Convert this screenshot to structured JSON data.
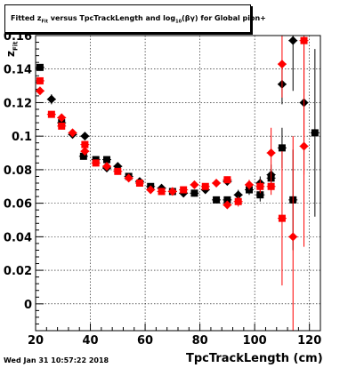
{
  "title_parts": {
    "pre": "Fitted  z",
    "sub1": "Fit",
    "mid": " versus TpcTrackLength and log",
    "sub2": "10",
    "post": "(βγ) for Global pion+"
  },
  "timestamp": "Wed Jan 31 10:57:22 2018",
  "chart_data": {
    "type": "scatter",
    "xlabel": "TpcTrackLength (cm)",
    "ylabel_main": "z",
    "ylabel_sub": "Fit",
    "xlim": [
      20,
      124
    ],
    "ylim": [
      -0.016,
      0.16
    ],
    "xticks": [
      20,
      40,
      60,
      80,
      100,
      120
    ],
    "yticks": [
      0,
      0.02,
      0.04,
      0.06,
      0.08,
      0.1,
      0.12,
      0.14,
      0.16
    ],
    "ytick_labels": [
      "0",
      "0.02",
      "0.04",
      "0.06",
      "0.08",
      "0.1",
      "0.12",
      "0.14",
      "0.16"
    ],
    "grid": true,
    "colors": {
      "series_black": "#000000",
      "series_red": "#ff0000"
    },
    "series": [
      {
        "marker": "square-and-diamond",
        "color": "#000000",
        "points": [
          {
            "x": 21.6,
            "y": 0.141,
            "err": 0.002
          },
          {
            "x": 25.8,
            "y": 0.122,
            "err": 0.003
          },
          {
            "x": 29.5,
            "y": 0.108,
            "err": 0.003
          },
          {
            "x": 33.5,
            "y": 0.101,
            "err": 0.002
          },
          {
            "x": 37.5,
            "y": 0.088,
            "err": 0.002
          },
          {
            "x": 38.0,
            "y": 0.1,
            "err": 0.002
          },
          {
            "x": 42.0,
            "y": 0.086,
            "err": 0.002
          },
          {
            "x": 46.0,
            "y": 0.081,
            "err": 0.002
          },
          {
            "x": 46.0,
            "y": 0.086,
            "err": 0.002
          },
          {
            "x": 50.0,
            "y": 0.082,
            "err": 0.002
          },
          {
            "x": 54.0,
            "y": 0.076,
            "err": 0.002
          },
          {
            "x": 58.0,
            "y": 0.073,
            "err": 0.002
          },
          {
            "x": 62.0,
            "y": 0.07,
            "err": 0.002
          },
          {
            "x": 66.0,
            "y": 0.069,
            "err": 0.002
          },
          {
            "x": 70.0,
            "y": 0.067,
            "err": 0.002
          },
          {
            "x": 74.0,
            "y": 0.066,
            "err": 0.002
          },
          {
            "x": 78.0,
            "y": 0.066,
            "err": 0.002
          },
          {
            "x": 82.0,
            "y": 0.068,
            "err": 0.002
          },
          {
            "x": 86.0,
            "y": 0.062,
            "err": 0.002
          },
          {
            "x": 90.0,
            "y": 0.073,
            "err": 0.002
          },
          {
            "x": 90.0,
            "y": 0.062,
            "err": 0.002
          },
          {
            "x": 94.0,
            "y": 0.065,
            "err": 0.003
          },
          {
            "x": 98.0,
            "y": 0.068,
            "err": 0.003
          },
          {
            "x": 102.0,
            "y": 0.072,
            "err": 0.004
          },
          {
            "x": 102.0,
            "y": 0.065,
            "err": 0.004
          },
          {
            "x": 106.0,
            "y": 0.077,
            "err": 0.006
          },
          {
            "x": 106.0,
            "y": 0.075,
            "err": 0.005
          },
          {
            "x": 110.0,
            "y": 0.131,
            "err": 0.012
          },
          {
            "x": 110.0,
            "y": 0.093,
            "err": 0.012
          },
          {
            "x": 114.0,
            "y": 0.157,
            "err": 0.03
          },
          {
            "x": 114.0,
            "y": 0.062,
            "err": 0.03
          },
          {
            "x": 118.0,
            "y": 0.12,
            "err": 0.04
          },
          {
            "x": 122.0,
            "y": 0.102,
            "err": 0.05
          }
        ]
      },
      {
        "marker": "square-and-diamond",
        "color": "#ff0000",
        "points": [
          {
            "x": 21.6,
            "y": 0.133,
            "err": 0.002
          },
          {
            "x": 21.6,
            "y": 0.127,
            "err": 0.002
          },
          {
            "x": 25.8,
            "y": 0.113,
            "err": 0.002
          },
          {
            "x": 29.5,
            "y": 0.111,
            "err": 0.002
          },
          {
            "x": 29.5,
            "y": 0.106,
            "err": 0.002
          },
          {
            "x": 33.5,
            "y": 0.102,
            "err": 0.002
          },
          {
            "x": 38.0,
            "y": 0.095,
            "err": 0.002
          },
          {
            "x": 38.0,
            "y": 0.091,
            "err": 0.002
          },
          {
            "x": 42.0,
            "y": 0.084,
            "err": 0.002
          },
          {
            "x": 46.0,
            "y": 0.082,
            "err": 0.002
          },
          {
            "x": 50.0,
            "y": 0.079,
            "err": 0.002
          },
          {
            "x": 54.0,
            "y": 0.075,
            "err": 0.002
          },
          {
            "x": 58.0,
            "y": 0.072,
            "err": 0.002
          },
          {
            "x": 62.0,
            "y": 0.068,
            "err": 0.002
          },
          {
            "x": 66.0,
            "y": 0.067,
            "err": 0.002
          },
          {
            "x": 70.0,
            "y": 0.067,
            "err": 0.002
          },
          {
            "x": 74.0,
            "y": 0.068,
            "err": 0.002
          },
          {
            "x": 78.0,
            "y": 0.071,
            "err": 0.002
          },
          {
            "x": 82.0,
            "y": 0.07,
            "err": 0.002
          },
          {
            "x": 86.0,
            "y": 0.072,
            "err": 0.002
          },
          {
            "x": 90.0,
            "y": 0.074,
            "err": 0.002
          },
          {
            "x": 90.0,
            "y": 0.059,
            "err": 0.002
          },
          {
            "x": 94.0,
            "y": 0.061,
            "err": 0.003
          },
          {
            "x": 98.0,
            "y": 0.071,
            "err": 0.003
          },
          {
            "x": 102.0,
            "y": 0.07,
            "err": 0.004
          },
          {
            "x": 106.0,
            "y": 0.09,
            "err": 0.015
          },
          {
            "x": 106.0,
            "y": 0.07,
            "err": 0.005
          },
          {
            "x": 110.0,
            "y": 0.143,
            "err": 0.02
          },
          {
            "x": 110.0,
            "y": 0.051,
            "err": 0.04
          },
          {
            "x": 114.0,
            "y": 0.04,
            "err": 0.06
          },
          {
            "x": 118.0,
            "y": 0.157,
            "err": 0.08
          },
          {
            "x": 118.0,
            "y": 0.094,
            "err": 0.06
          }
        ]
      }
    ]
  }
}
